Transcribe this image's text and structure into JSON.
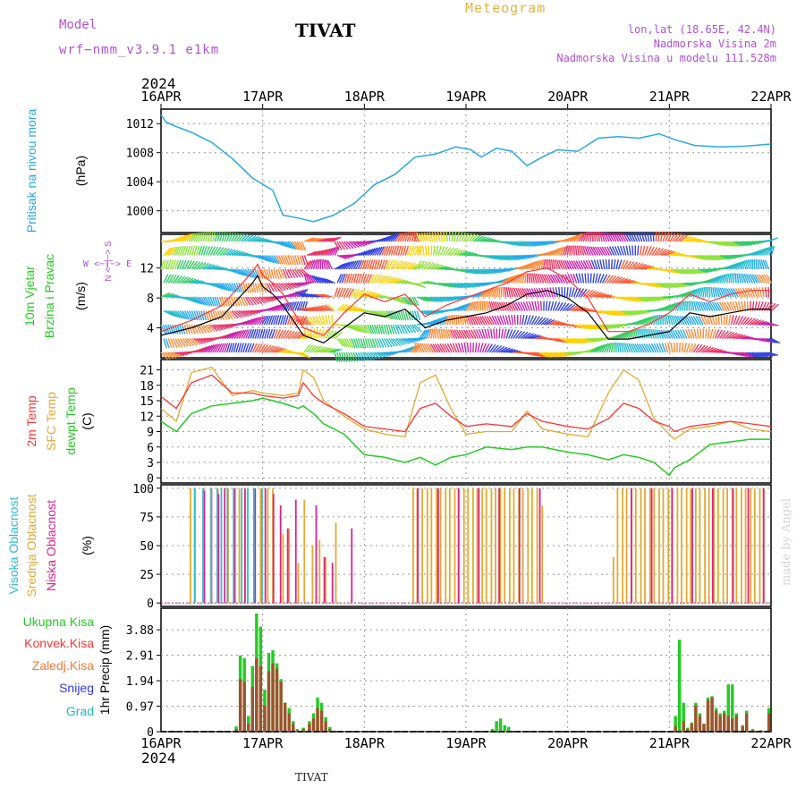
{
  "header": {
    "model_label": "Model",
    "model_name": "wrf−nmm_v3.9.1  e1km",
    "station": "TIVAT",
    "meteogram": "Meteogram",
    "coords": "lon,lat (18.65E, 42.4N)",
    "altitude": "Nadmorska Visina 2m",
    "model_altitude": "Nadmorska Visina u modelu 111.528m",
    "year": "2024",
    "footer_station": "TIVAT",
    "credit": "made by Angel"
  },
  "colors": {
    "pressure": "#29a8e8",
    "wind_label": "#22cc22",
    "wind_speed": "#000000",
    "wind_gust": "#ff3333",
    "temp_2m": "#ff3333",
    "temp_sfc": "#e6a830",
    "dewpt": "#22cc22",
    "cloud_high": "#33bbcc",
    "cloud_mid": "#e6a830",
    "cloud_low": "#dd2288",
    "precip_total": "#22cc22",
    "precip_conv": "#ff3333",
    "precip_frz": "#ff7733",
    "snow": "#3333ee",
    "hail": "#22bbbb"
  },
  "chart_data": {
    "type": "line",
    "x_ticks": [
      "16APR",
      "17APR",
      "18APR",
      "19APR",
      "20APR",
      "21APR",
      "22APR"
    ],
    "x_range_days": [
      0,
      6
    ],
    "panels": {
      "pressure": {
        "label_main": "Pritisak na nivou mora",
        "label_unit": "(hPa)",
        "yticks": [
          "1000",
          "1004",
          "1008",
          "1012"
        ],
        "ylim": [
          997,
          1014
        ],
        "x": [
          0,
          0.05,
          0.15,
          0.3,
          0.5,
          0.7,
          0.9,
          1.1,
          1.2,
          1.35,
          1.5,
          1.7,
          1.9,
          2.1,
          2.3,
          2.5,
          2.7,
          2.9,
          3.05,
          3.15,
          3.3,
          3.45,
          3.6,
          3.75,
          3.9,
          4.1,
          4.3,
          4.5,
          4.7,
          4.9,
          5.05,
          5.25,
          5.5,
          5.75,
          6
        ],
        "y": [
          1013.2,
          1012.2,
          1011.6,
          1010.8,
          1009.4,
          1007.2,
          1004.5,
          1002.8,
          999.4,
          999.0,
          998.5,
          999.4,
          1001.0,
          1003.6,
          1005.0,
          1007.4,
          1007.8,
          1008.8,
          1008.4,
          1007.4,
          1008.6,
          1008.2,
          1006.2,
          1007.4,
          1008.4,
          1008.2,
          1010.0,
          1010.2,
          1010.0,
          1010.6,
          1009.8,
          1009.0,
          1008.8,
          1008.9,
          1009.2
        ]
      },
      "wind": {
        "label_main": "10m Vjetar",
        "label_sub": "Brzina i Pravac",
        "label_unit": "(m/s)",
        "compass": "W <−|−> E",
        "compass_v": "N <−|−> S",
        "yticks": [
          "4",
          "8",
          "12"
        ],
        "ylim": [
          0,
          16.5
        ],
        "x": [
          0,
          0.3,
          0.6,
          0.9,
          0.95,
          1.0,
          1.1,
          1.2,
          1.4,
          1.6,
          1.8,
          2.0,
          2.2,
          2.4,
          2.6,
          2.8,
          3.0,
          3.2,
          3.4,
          3.6,
          3.8,
          4.0,
          4.2,
          4.4,
          4.6,
          4.8,
          5.0,
          5.2,
          5.4,
          5.6,
          5.8,
          6.0
        ],
        "speed": [
          3.0,
          4.0,
          5.5,
          10.0,
          11.0,
          9.5,
          8.5,
          7.0,
          3.0,
          2.0,
          4.0,
          6.0,
          5.5,
          6.5,
          4.0,
          5.0,
          5.5,
          6.0,
          7.0,
          8.5,
          9.0,
          8.0,
          6.0,
          2.5,
          2.5,
          3.0,
          3.5,
          6.0,
          5.5,
          6.0,
          6.5,
          6.5
        ],
        "gust": [
          3.5,
          5.0,
          7.0,
          11.5,
          12.5,
          11.0,
          10.0,
          8.5,
          4.0,
          3.0,
          6.0,
          8.5,
          7.5,
          8.5,
          5.5,
          7.0,
          8.0,
          9.0,
          10.0,
          11.5,
          12.0,
          10.5,
          8.0,
          3.5,
          3.5,
          4.5,
          6.0,
          8.5,
          7.5,
          8.5,
          9.0,
          9.0
        ]
      },
      "temperature": {
        "label_2m": "2m Temp",
        "label_sfc": "SFC Temp",
        "label_dewpt": "dewpt Temp",
        "label_unit": "(C)",
        "yticks": [
          "0",
          "3",
          "6",
          "9",
          "12",
          "15",
          "18",
          "21"
        ],
        "ylim": [
          -1,
          23
        ],
        "x": [
          0,
          0.15,
          0.3,
          0.5,
          0.7,
          0.9,
          1.0,
          1.2,
          1.35,
          1.4,
          1.5,
          1.6,
          1.8,
          2.0,
          2.2,
          2.4,
          2.55,
          2.7,
          2.85,
          3.0,
          3.2,
          3.45,
          3.6,
          3.75,
          4.0,
          4.2,
          4.4,
          4.55,
          4.7,
          4.85,
          5.0,
          5.05,
          5.2,
          5.4,
          5.6,
          5.8,
          6.0
        ],
        "t2m": [
          15.8,
          13.5,
          18.5,
          20.0,
          16.5,
          16.5,
          16.0,
          15.5,
          16.0,
          18.5,
          16.0,
          14.5,
          12.5,
          10.0,
          9.5,
          9.0,
          13.5,
          14.5,
          12.0,
          10.0,
          10.5,
          10.0,
          12.5,
          11.0,
          10.0,
          9.5,
          11.5,
          14.5,
          13.5,
          11.0,
          10.0,
          9.0,
          10.0,
          10.5,
          11.0,
          10.5,
          10.0
        ],
        "tsfc": [
          13.5,
          11.0,
          20.5,
          21.5,
          16.0,
          17.0,
          16.5,
          16.0,
          16.5,
          21.0,
          19.5,
          15.0,
          12.0,
          9.5,
          8.5,
          8.0,
          18.5,
          20.0,
          13.5,
          8.5,
          9.0,
          9.0,
          13.0,
          9.5,
          8.5,
          8.0,
          16.5,
          21.0,
          19.0,
          11.5,
          8.5,
          7.5,
          9.5,
          10.0,
          11.0,
          9.5,
          9.0
        ],
        "dewpt": [
          11.0,
          9.0,
          12.5,
          14.0,
          14.5,
          15.0,
          15.5,
          14.5,
          13.5,
          14.0,
          12.5,
          10.5,
          8.5,
          4.5,
          4.0,
          3.0,
          4.0,
          2.5,
          4.0,
          4.5,
          6.0,
          5.5,
          6.0,
          6.0,
          5.0,
          4.5,
          3.5,
          4.5,
          4.0,
          3.0,
          0.5,
          2.0,
          3.5,
          6.5,
          7.0,
          7.5,
          7.5
        ]
      },
      "cloud": {
        "label_high": "Visoka Oblacnost",
        "label_mid": "Srednja Oblacnost",
        "label_low": "Niska Oblacnost",
        "label_unit": "(%)",
        "yticks": [
          "0",
          "25",
          "50",
          "75",
          "100"
        ],
        "ylim": [
          -3,
          103
        ],
        "mid_x": [
          0.29,
          0.33,
          0.42,
          0.49,
          0.56,
          0.66,
          0.77,
          0.98,
          1.05,
          1.1,
          1.2,
          1.26,
          1.35,
          1.41,
          1.49,
          1.56,
          1.62,
          1.72,
          2.48,
          2.52,
          2.57,
          2.62,
          2.66,
          2.71,
          2.75,
          2.8,
          2.84,
          2.89,
          2.93,
          2.98,
          3.02,
          3.07,
          3.11,
          3.16,
          3.2,
          3.25,
          3.29,
          3.34,
          3.38,
          3.43,
          3.47,
          3.52,
          3.56,
          3.61,
          3.65,
          3.7,
          3.75,
          4.45,
          4.49,
          4.54,
          4.58,
          4.63,
          4.67,
          4.72,
          4.76,
          4.81,
          4.85,
          4.9,
          4.94,
          4.99,
          5.03,
          5.08,
          5.12,
          5.17,
          5.21,
          5.26,
          5.3,
          5.35,
          5.39,
          5.44,
          5.48,
          5.53,
          5.57,
          5.62,
          5.66,
          5.71,
          5.75,
          5.8,
          5.84,
          5.89,
          5.93
        ],
        "mid_v": [
          100,
          100,
          100,
          100,
          100,
          100,
          100,
          100,
          100,
          100,
          60,
          65,
          35,
          90,
          50,
          55,
          40,
          70,
          100,
          100,
          100,
          100,
          100,
          100,
          100,
          100,
          100,
          100,
          100,
          100,
          100,
          100,
          100,
          100,
          100,
          100,
          100,
          100,
          100,
          100,
          100,
          100,
          100,
          100,
          100,
          100,
          85,
          40,
          100,
          100,
          100,
          100,
          100,
          100,
          100,
          100,
          100,
          100,
          100,
          100,
          100,
          100,
          100,
          100,
          100,
          100,
          100,
          100,
          100,
          100,
          100,
          100,
          100,
          100,
          100,
          100,
          100,
          100,
          100,
          100,
          100
        ],
        "low_x": [
          0.4,
          0.47,
          0.54,
          0.6,
          0.7,
          0.8,
          0.9,
          1.0,
          1.08,
          1.15,
          1.22,
          1.3,
          1.5,
          1.58,
          1.66,
          1.85,
          2.5,
          2.7,
          2.9,
          3.1,
          3.3,
          3.5,
          3.7,
          4.6,
          4.8,
          5.0,
          5.2,
          5.4,
          5.6,
          5.75,
          5.9
        ],
        "low_v": [
          98,
          100,
          95,
          100,
          100,
          100,
          100,
          100,
          95,
          85,
          65,
          90,
          85,
          40,
          35,
          65,
          100,
          100,
          100,
          100,
          100,
          100,
          100,
          100,
          100,
          100,
          100,
          100,
          100,
          100,
          100
        ],
        "high_x": [
          0.36,
          0.44,
          0.52,
          0.58,
          0.62,
          0.68,
          0.74,
          0.82,
          0.88,
          0.94,
          1.02
        ],
        "high_v": [
          100,
          100,
          100,
          100,
          100,
          100,
          100,
          100,
          100,
          100,
          100
        ]
      },
      "precip": {
        "label_total": "Ukupna Kisa",
        "label_conv": "Konvek.Kisa",
        "label_frz": "Zaledj.Kisa",
        "label_snow": "Snijeg",
        "label_hail": "Grad",
        "label_unit": "1hr Precip (mm)",
        "yticks": [
          "0",
          "0.97",
          "1.94",
          "2.91",
          "3.88"
        ],
        "ylim": [
          0,
          4.7
        ],
        "x": [
          0.74,
          0.78,
          0.82,
          0.86,
          0.9,
          0.94,
          0.98,
          1.02,
          1.06,
          1.1,
          1.14,
          1.18,
          1.22,
          1.26,
          1.3,
          1.34,
          1.4,
          1.46,
          1.5,
          1.54,
          1.58,
          1.62,
          1.66,
          3.26,
          3.3,
          3.34,
          3.38,
          3.42,
          5.06,
          5.1,
          5.14,
          5.18,
          5.22,
          5.26,
          5.3,
          5.34,
          5.38,
          5.42,
          5.46,
          5.5,
          5.54,
          5.58,
          5.62,
          5.66,
          5.72,
          5.76,
          5.82,
          5.9,
          5.98
        ],
        "total": [
          0.2,
          2.9,
          2.8,
          0.6,
          2.5,
          4.5,
          4.0,
          1.6,
          3.0,
          3.1,
          2.6,
          2.0,
          1.1,
          0.9,
          0.4,
          0.1,
          0.15,
          0.4,
          0.7,
          1.3,
          1.1,
          0.55,
          0.18,
          0.1,
          0.4,
          0.5,
          0.25,
          0.18,
          0.6,
          3.5,
          1.1,
          0.15,
          0.35,
          1.1,
          0.7,
          0.3,
          1.3,
          1.35,
          0.9,
          0.7,
          0.8,
          1.8,
          1.8,
          0.7,
          0.25,
          0.8,
          0.1,
          0.05,
          0.9
        ],
        "conv": [
          0.1,
          2.0,
          1.9,
          0.3,
          1.7,
          2.8,
          2.5,
          1.0,
          2.3,
          2.6,
          2.4,
          1.9,
          1.1,
          0.7,
          0.3,
          0.05,
          0.1,
          0.3,
          0.5,
          0.9,
          0.8,
          0.4,
          0.1,
          0.0,
          0.0,
          0.0,
          0.0,
          0.0,
          0.2,
          0.0,
          0.4,
          0.1,
          0.3,
          1.0,
          0.6,
          0.3,
          1.2,
          1.3,
          0.8,
          0.6,
          0.7,
          0.6,
          0.5,
          0.6,
          0.2,
          0.7,
          0.05,
          0.05,
          0.7
        ]
      }
    }
  }
}
